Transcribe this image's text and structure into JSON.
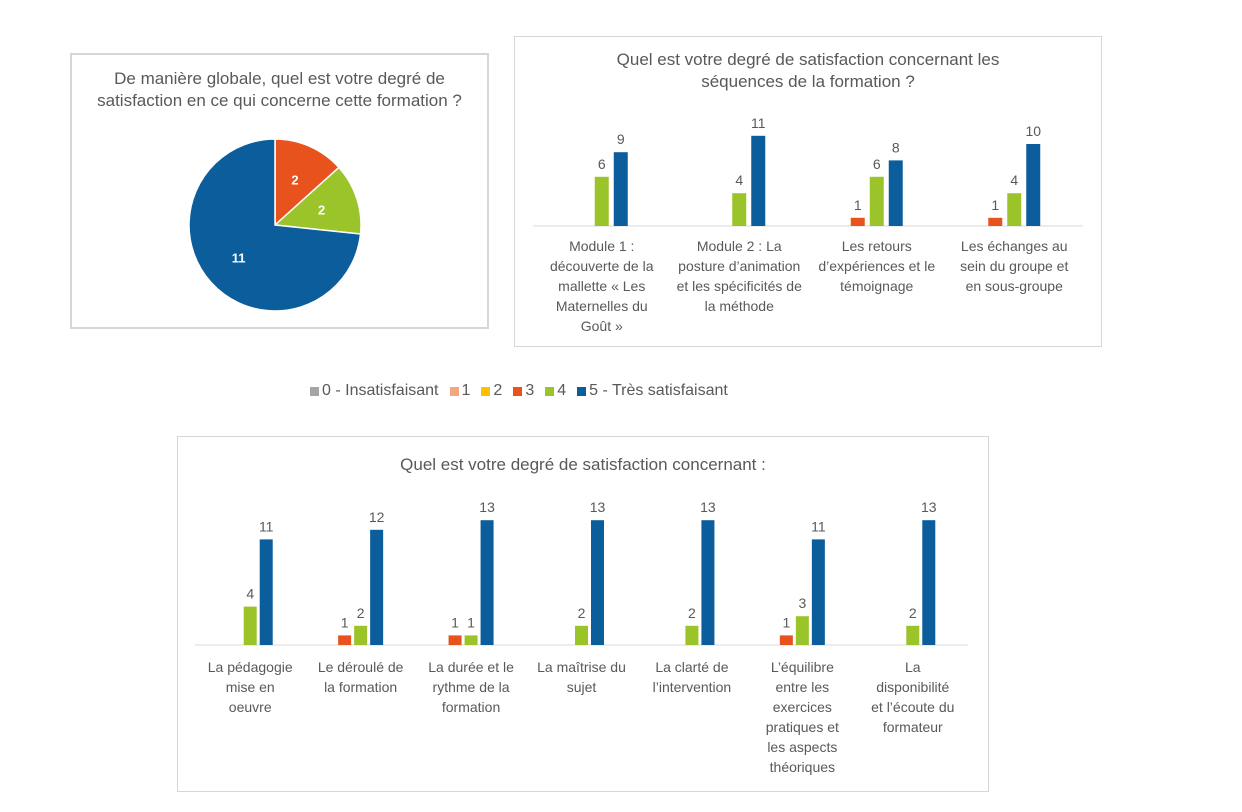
{
  "legend": [
    {
      "label": "0 - Insatisfaisant",
      "color": "#a5a5a5"
    },
    {
      "label": "1",
      "color": "#f4a582"
    },
    {
      "label": "2",
      "color": "#ffc000"
    },
    {
      "label": "3",
      "color": "#e8521c"
    },
    {
      "label": "4",
      "color": "#9ac42a"
    },
    {
      "label": "5 - Très satisfaisant",
      "color": "#0b5d9b"
    }
  ],
  "chart_data": [
    {
      "type": "pie",
      "title_lines": [
        "De manière globale, quel est votre degré de",
        "satisfaction en ce qui concerne cette formation ?"
      ],
      "slices": [
        {
          "series": "3",
          "value": 2,
          "label": "2",
          "color": "#e8521c"
        },
        {
          "series": "4",
          "value": 2,
          "label": "2",
          "color": "#9ac42a"
        },
        {
          "series": "5 - Très satisfaisant",
          "value": 11,
          "label": "11",
          "color": "#0b5d9b"
        }
      ]
    },
    {
      "type": "bar",
      "title_lines": [
        "Quel est votre degré de satisfaction concernant les",
        "séquences de la formation ?"
      ],
      "categories": [
        [
          "Module 1 :",
          "découverte de la",
          "mallette « Les",
          "Maternelles du",
          "Goût »"
        ],
        [
          "Module 2 : La",
          "posture d’animation",
          "et les spécificités de",
          "la méthode"
        ],
        [
          "Les retours",
          "d’expériences et le",
          "témoignage"
        ],
        [
          "Les échanges au",
          "sein du groupe et",
          "en sous-groupe"
        ]
      ],
      "series": [
        {
          "name": "3",
          "color": "#e8521c",
          "values": [
            0,
            0,
            1,
            1
          ]
        },
        {
          "name": "4",
          "color": "#9ac42a",
          "values": [
            6,
            4,
            6,
            4
          ]
        },
        {
          "name": "5 - Très satisfaisant",
          "color": "#0b5d9b",
          "values": [
            9,
            11,
            8,
            10
          ]
        }
      ],
      "ylim": [
        0,
        12
      ]
    },
    {
      "type": "bar",
      "title_lines": [
        "Quel est votre degré de satisfaction concernant :"
      ],
      "categories": [
        [
          "La pédagogie",
          "mise en",
          "oeuvre"
        ],
        [
          "Le déroulé de",
          "la formation"
        ],
        [
          "La durée et le",
          "rythme de la",
          "formation"
        ],
        [
          "La maîtrise du",
          "sujet"
        ],
        [
          "La clarté de",
          "l’intervention"
        ],
        [
          "L’équilibre",
          "entre les",
          "exercices",
          "pratiques et",
          "les aspects",
          "théoriques"
        ],
        [
          "La",
          "disponibilité",
          "et l’écoute du",
          "formateur"
        ]
      ],
      "series": [
        {
          "name": "3",
          "color": "#e8521c",
          "values": [
            0,
            1,
            1,
            0,
            0,
            1,
            0
          ]
        },
        {
          "name": "4",
          "color": "#9ac42a",
          "values": [
            4,
            2,
            1,
            2,
            2,
            3,
            2
          ]
        },
        {
          "name": "5 - Très satisfaisant",
          "color": "#0b5d9b",
          "values": [
            11,
            12,
            13,
            13,
            13,
            11,
            13
          ]
        }
      ],
      "ylim": [
        0,
        14
      ]
    }
  ]
}
